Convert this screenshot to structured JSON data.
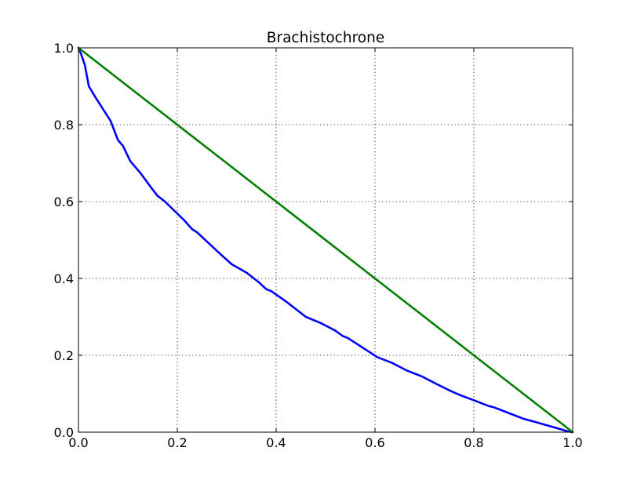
{
  "chart_data": {
    "type": "line",
    "title": "Brachistochrone",
    "xlabel": "",
    "ylabel": "",
    "xlim": [
      0.0,
      1.0
    ],
    "ylim": [
      0.0,
      1.0
    ],
    "xticks": [
      "0.0",
      "0.2",
      "0.4",
      "0.6",
      "0.8",
      "1.0"
    ],
    "yticks": [
      "0.0",
      "0.2",
      "0.4",
      "0.6",
      "0.8",
      "1.0"
    ],
    "grid": true,
    "legend": "none",
    "series": [
      {
        "color": "#0000ff",
        "x": [
          0.0,
          0.005,
          0.013,
          0.021,
          0.035,
          0.05,
          0.065,
          0.08,
          0.09,
          0.105,
          0.125,
          0.145,
          0.16,
          0.175,
          0.195,
          0.215,
          0.23,
          0.24,
          0.265,
          0.29,
          0.31,
          0.34,
          0.365,
          0.38,
          0.39,
          0.42,
          0.445,
          0.46,
          0.49,
          0.52,
          0.535,
          0.545,
          0.575,
          0.605,
          0.635,
          0.665,
          0.685,
          0.695,
          0.725,
          0.755,
          0.775,
          0.8,
          0.83,
          0.84,
          0.87,
          0.9,
          0.92,
          0.95,
          0.975,
          0.99,
          1.0
        ],
        "y": [
          1.0,
          0.985,
          0.955,
          0.9,
          0.87,
          0.84,
          0.81,
          0.76,
          0.745,
          0.705,
          0.675,
          0.64,
          0.615,
          0.6,
          0.575,
          0.55,
          0.528,
          0.52,
          0.49,
          0.46,
          0.437,
          0.415,
          0.39,
          0.372,
          0.367,
          0.34,
          0.315,
          0.3,
          0.284,
          0.264,
          0.25,
          0.245,
          0.22,
          0.195,
          0.18,
          0.16,
          0.15,
          0.145,
          0.125,
          0.106,
          0.095,
          0.083,
          0.068,
          0.065,
          0.05,
          0.035,
          0.028,
          0.017,
          0.008,
          0.002,
          0.0
        ]
      },
      {
        "color": "#008000",
        "x": [
          0.0,
          1.0
        ],
        "y": [
          1.0,
          0.0
        ]
      }
    ]
  }
}
